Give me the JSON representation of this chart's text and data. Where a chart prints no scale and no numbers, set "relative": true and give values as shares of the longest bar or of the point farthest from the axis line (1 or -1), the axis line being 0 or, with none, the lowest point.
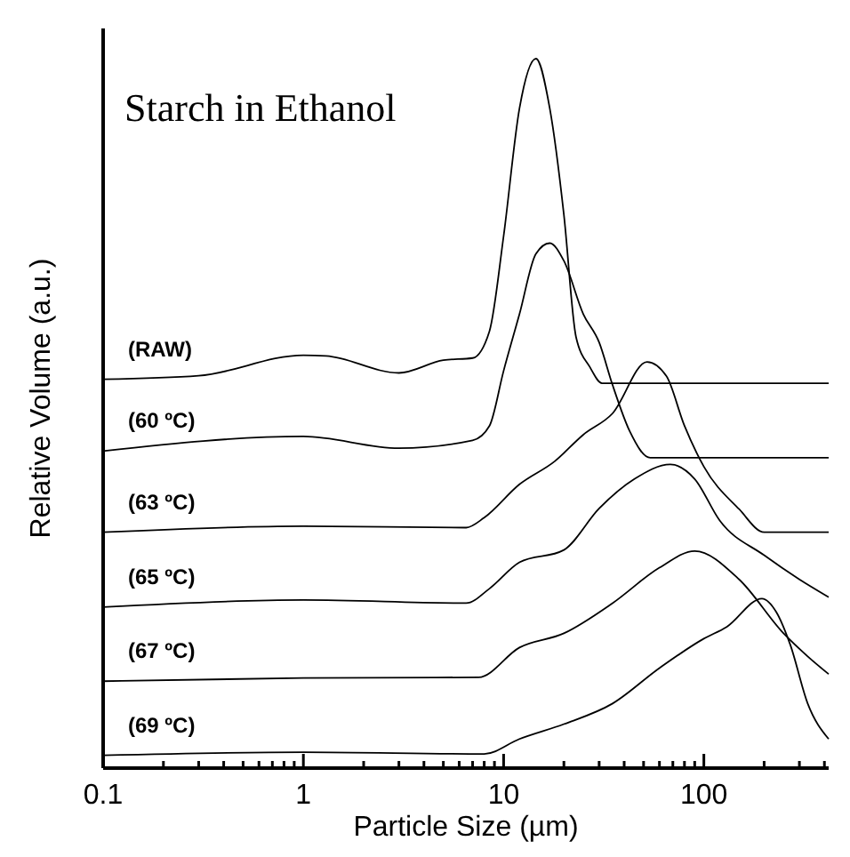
{
  "chart_data": {
    "type": "line",
    "title": "Starch in Ethanol",
    "xlabel": "Particle Size (µm)",
    "ylabel": "Relative Volume (a.u.)",
    "log": "x",
    "relative": true,
    "marker": "none",
    "line_style": "solid",
    "grid": false,
    "xlim": [
      0.1,
      420
    ],
    "xticks": [
      0.1,
      {
        "value": 0.2,
        "label": null
      },
      {
        "value": 0.3,
        "label": null
      },
      {
        "value": 0.4,
        "label": null
      },
      {
        "value": 0.5,
        "label": null
      },
      {
        "value": 0.6,
        "label": null
      },
      {
        "value": 0.7,
        "label": null
      },
      {
        "value": 0.8,
        "label": null
      },
      {
        "value": 0.9,
        "label": null
      },
      1,
      {
        "value": 2,
        "label": null
      },
      {
        "value": 3,
        "label": null
      },
      {
        "value": 4,
        "label": null
      },
      {
        "value": 5,
        "label": null
      },
      {
        "value": 6,
        "label": null
      },
      {
        "value": 7,
        "label": null
      },
      {
        "value": 8,
        "label": null
      },
      {
        "value": 9,
        "label": null
      },
      10,
      {
        "value": 20,
        "label": null
      },
      {
        "value": 30,
        "label": null
      },
      {
        "value": 40,
        "label": null
      },
      {
        "value": 50,
        "label": null
      },
      {
        "value": 60,
        "label": null
      },
      {
        "value": 70,
        "label": null
      },
      {
        "value": 80,
        "label": null
      },
      {
        "value": 90,
        "label": null
      },
      100,
      {
        "value": 200,
        "label": null
      },
      {
        "value": 300,
        "label": null
      },
      {
        "value": 400,
        "label": null
      }
    ],
    "series": [
      {
        "name": "(RAW)",
        "color": "#000000",
        "x": [
          0.1,
          0.3,
          1,
          1.3,
          3,
          5,
          7,
          8.5,
          10,
          12,
          14.5,
          17,
          20,
          23,
          27,
          31,
          420
        ],
        "values": [
          0.548,
          0.553,
          0.582,
          0.581,
          0.557,
          0.575,
          0.578,
          0.616,
          0.75,
          0.93,
          1.0,
          0.93,
          0.78,
          0.6075,
          0.565,
          0.5425,
          0.5425
        ]
      },
      {
        "name": "(60 ºC)",
        "color": "#000000",
        "x": [
          0.1,
          1,
          3,
          7,
          8.5,
          10,
          12,
          14.5,
          17,
          20,
          25,
          30,
          35,
          42.6,
          54,
          420
        ],
        "values": [
          0.447,
          0.4675,
          0.451,
          0.462,
          0.4825,
          0.56,
          0.64,
          0.725,
          0.74,
          0.715,
          0.64,
          0.6,
          0.54,
          0.475,
          0.4375,
          0.4375
        ]
      },
      {
        "name": "(63 ºC)",
        "color": "#000000",
        "x": [
          0.1,
          1,
          6.5,
          8,
          12,
          18,
          25,
          35,
          52,
          65,
          80,
          100,
          150,
          200,
          420
        ],
        "values": [
          0.3325,
          0.341,
          0.339,
          0.353,
          0.4,
          0.4325,
          0.47,
          0.5,
          0.5725,
          0.5525,
          0.4825,
          0.425,
          0.365,
          0.3325,
          0.3325
        ]
      },
      {
        "name": "(65 ºC)",
        "color": "#000000",
        "x": [
          0.1,
          1,
          6.5,
          8.5,
          12,
          20,
          30,
          45,
          68,
          90,
          120,
          200,
          300,
          420
        ],
        "values": [
          0.227,
          0.237,
          0.2325,
          0.253,
          0.29,
          0.3075,
          0.366,
          0.4075,
          0.428,
          0.4075,
          0.349,
          0.3,
          0.266,
          0.241
        ]
      },
      {
        "name": "(67 ºC)",
        "color": "#000000",
        "x": [
          0.1,
          1,
          7.5,
          12,
          20,
          35,
          60,
          90,
          150,
          250,
          330,
          420
        ],
        "values": [
          0.1225,
          0.127,
          0.128,
          0.17,
          0.19,
          0.2325,
          0.2825,
          0.306,
          0.266,
          0.19,
          0.1575,
          0.1325
        ]
      },
      {
        "name": "(69 ºC)",
        "color": "#000000",
        "x": [
          0.1,
          1,
          8,
          12,
          20,
          35,
          60,
          100,
          130,
          195,
          230,
          270,
          330,
          420
        ],
        "values": [
          0.018,
          0.0225,
          0.02,
          0.041,
          0.062,
          0.091,
          0.141,
          0.1825,
          0.199,
          0.239,
          0.22,
          0.174,
          0.091,
          0.041
        ]
      }
    ]
  }
}
